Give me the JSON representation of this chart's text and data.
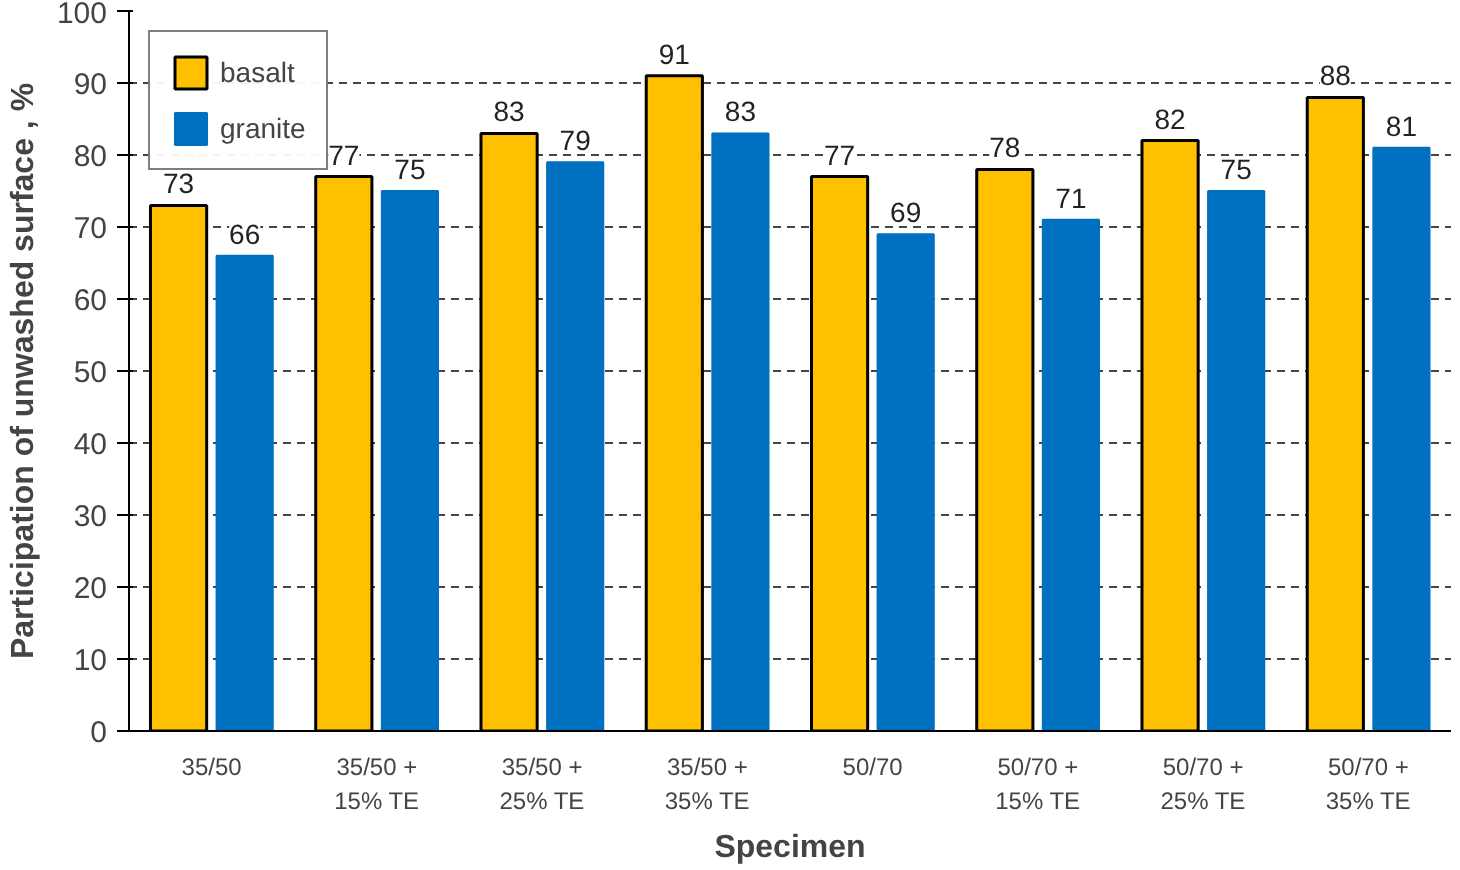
{
  "chart_data": {
    "type": "bar",
    "xlabel": "Specimen",
    "ylabel": "Participation of unwashed surface , %",
    "categories": [
      "35/50",
      "35/50 +\n15% TE",
      "35/50 +\n25% TE",
      "35/50 +\n35% TE",
      "50/70",
      "50/70 +\n15% TE",
      "50/70 +\n25% TE",
      "50/70 +\n35% TE"
    ],
    "series": [
      {
        "name": "basalt",
        "color": "#ffc000",
        "values": [
          73,
          77,
          83,
          91,
          77,
          78,
          82,
          88
        ]
      },
      {
        "name": "granite",
        "color": "#0070c0",
        "values": [
          66,
          75,
          79,
          83,
          69,
          71,
          75,
          81
        ]
      }
    ],
    "ylim": [
      0,
      100
    ],
    "yticks": [
      0,
      10,
      20,
      30,
      40,
      50,
      60,
      70,
      80,
      90,
      100
    ],
    "grid": "y",
    "legend": "top left",
    "data_labels": true
  }
}
